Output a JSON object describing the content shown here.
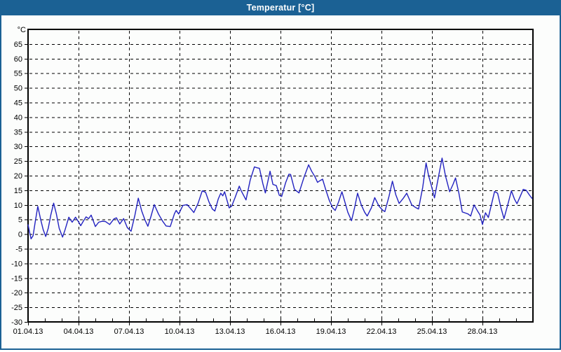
{
  "window": {
    "title": "Temperatur [°C]"
  },
  "colors": {
    "frame_blue": "#1b6194",
    "background": "#fcfdfc",
    "line_blue": "#2222c0",
    "grid_black": "#000000",
    "title_text": "#ffffff"
  },
  "chart_data": {
    "type": "line",
    "title": "Temperatur [°C]",
    "y_unit_label": "°C",
    "ylim": [
      -30,
      70
    ],
    "y_ticks": [
      65,
      60,
      55,
      50,
      45,
      40,
      35,
      30,
      25,
      20,
      15,
      10,
      5,
      0,
      -5,
      -10,
      -15,
      -20,
      -25,
      -30
    ],
    "xlim_days": [
      0,
      30
    ],
    "x_minor_step_days": 1,
    "x_ticks": [
      {
        "d": 0,
        "label": "01.04.13"
      },
      {
        "d": 3,
        "label": "04.04.13"
      },
      {
        "d": 6,
        "label": "07.04.13"
      },
      {
        "d": 9,
        "label": "10.04.13"
      },
      {
        "d": 12,
        "label": "13.04.13"
      },
      {
        "d": 15,
        "label": "16.04.13"
      },
      {
        "d": 18,
        "label": "19.04.13"
      },
      {
        "d": 21,
        "label": "22.04.13"
      },
      {
        "d": 24,
        "label": "25.04.13"
      },
      {
        "d": 27,
        "label": "28.04.13"
      }
    ],
    "grid": "dashed",
    "legend": "none",
    "series": [
      {
        "name": "Temperatur",
        "unit": "°C",
        "points": [
          [
            0,
            3.2
          ],
          [
            0.08,
            1.0
          ],
          [
            0.18,
            -1.6
          ],
          [
            0.3,
            -0.5
          ],
          [
            0.42,
            4.0
          ],
          [
            0.58,
            9.5
          ],
          [
            0.75,
            5.0
          ],
          [
            0.9,
            1.5
          ],
          [
            1.05,
            -0.8
          ],
          [
            1.2,
            2.0
          ],
          [
            1.35,
            6.5
          ],
          [
            1.52,
            10.6
          ],
          [
            1.68,
            7.0
          ],
          [
            1.85,
            2.0
          ],
          [
            2.05,
            -1.0
          ],
          [
            2.2,
            1.5
          ],
          [
            2.42,
            5.8
          ],
          [
            2.62,
            4.1
          ],
          [
            2.82,
            5.8
          ],
          [
            3.0,
            4.2
          ],
          [
            3.13,
            2.9
          ],
          [
            3.3,
            4.6
          ],
          [
            3.45,
            5.9
          ],
          [
            3.6,
            5.3
          ],
          [
            3.75,
            6.5
          ],
          [
            4.0,
            2.6
          ],
          [
            4.2,
            4.1
          ],
          [
            4.4,
            4.4
          ],
          [
            4.6,
            4.3
          ],
          [
            4.85,
            3.3
          ],
          [
            5.1,
            5.2
          ],
          [
            5.25,
            5.6
          ],
          [
            5.45,
            3.5
          ],
          [
            5.68,
            5.3
          ],
          [
            5.9,
            2.2
          ],
          [
            6.12,
            1.0
          ],
          [
            6.35,
            6.5
          ],
          [
            6.55,
            12.3
          ],
          [
            6.75,
            8.0
          ],
          [
            6.95,
            4.8
          ],
          [
            7.12,
            2.7
          ],
          [
            7.3,
            6.0
          ],
          [
            7.5,
            10.1
          ],
          [
            7.75,
            6.9
          ],
          [
            8.0,
            4.4
          ],
          [
            8.2,
            2.8
          ],
          [
            8.45,
            2.6
          ],
          [
            8.7,
            7.0
          ],
          [
            8.8,
            8.1
          ],
          [
            8.95,
            6.9
          ],
          [
            9.2,
            9.8
          ],
          [
            9.45,
            10.1
          ],
          [
            9.65,
            8.8
          ],
          [
            9.85,
            7.4
          ],
          [
            10.1,
            10.5
          ],
          [
            10.35,
            14.8
          ],
          [
            10.55,
            14.3
          ],
          [
            10.75,
            11.0
          ],
          [
            10.95,
            8.6
          ],
          [
            11.1,
            7.9
          ],
          [
            11.3,
            12.0
          ],
          [
            11.45,
            14.0
          ],
          [
            11.57,
            13.1
          ],
          [
            11.68,
            14.5
          ],
          [
            11.8,
            12.0
          ],
          [
            11.95,
            9.0
          ],
          [
            12.1,
            9.6
          ],
          [
            12.3,
            12.5
          ],
          [
            12.55,
            16.4
          ],
          [
            12.65,
            15.0
          ],
          [
            12.95,
            11.7
          ],
          [
            13.2,
            18.5
          ],
          [
            13.45,
            23.0
          ],
          [
            13.6,
            22.7
          ],
          [
            13.75,
            22.5
          ],
          [
            13.95,
            17.3
          ],
          [
            14.1,
            14.1
          ],
          [
            14.38,
            21.5
          ],
          [
            14.55,
            17.0
          ],
          [
            14.75,
            16.6
          ],
          [
            14.93,
            13.3
          ],
          [
            15.07,
            12.9
          ],
          [
            15.3,
            17.5
          ],
          [
            15.5,
            20.5
          ],
          [
            15.6,
            20.4
          ],
          [
            15.83,
            15.3
          ],
          [
            16.1,
            14.1
          ],
          [
            16.4,
            19.5
          ],
          [
            16.67,
            23.7
          ],
          [
            16.85,
            21.5
          ],
          [
            17.05,
            19.6
          ],
          [
            17.2,
            17.7
          ],
          [
            17.35,
            18.3
          ],
          [
            17.5,
            18.8
          ],
          [
            17.7,
            15.0
          ],
          [
            17.9,
            11.5
          ],
          [
            18.1,
            9.0
          ],
          [
            18.25,
            8.1
          ],
          [
            18.45,
            11.0
          ],
          [
            18.65,
            14.5
          ],
          [
            18.85,
            10.5
          ],
          [
            19.0,
            7.5
          ],
          [
            19.22,
            4.6
          ],
          [
            19.4,
            9.0
          ],
          [
            19.58,
            14.0
          ],
          [
            19.8,
            10.0
          ],
          [
            20.0,
            7.5
          ],
          [
            20.15,
            6.2
          ],
          [
            20.4,
            9.0
          ],
          [
            20.6,
            12.5
          ],
          [
            20.85,
            9.6
          ],
          [
            21.05,
            8.3
          ],
          [
            21.2,
            7.7
          ],
          [
            21.45,
            13.0
          ],
          [
            21.65,
            18.1
          ],
          [
            21.85,
            13.5
          ],
          [
            22.05,
            10.5
          ],
          [
            22.3,
            12.3
          ],
          [
            22.5,
            14.0
          ],
          [
            22.65,
            12.0
          ],
          [
            22.8,
            10.0
          ],
          [
            23.0,
            9.2
          ],
          [
            23.2,
            8.6
          ],
          [
            23.45,
            16.0
          ],
          [
            23.65,
            24.3
          ],
          [
            23.8,
            20.0
          ],
          [
            23.95,
            16.9
          ],
          [
            24.15,
            12.4
          ],
          [
            24.4,
            20.0
          ],
          [
            24.6,
            26.0
          ],
          [
            24.8,
            20.0
          ],
          [
            25.05,
            14.5
          ],
          [
            25.25,
            17.0
          ],
          [
            25.4,
            19.2
          ],
          [
            25.6,
            14.0
          ],
          [
            25.8,
            7.6
          ],
          [
            26.0,
            7.2
          ],
          [
            26.15,
            6.9
          ],
          [
            26.3,
            6.2
          ],
          [
            26.5,
            10.0
          ],
          [
            26.7,
            8.0
          ],
          [
            26.85,
            6.6
          ],
          [
            27.0,
            3.3
          ],
          [
            27.18,
            7.3
          ],
          [
            27.35,
            5.7
          ],
          [
            27.55,
            10.5
          ],
          [
            27.72,
            14.6
          ],
          [
            27.9,
            14.0
          ],
          [
            28.1,
            9.0
          ],
          [
            28.28,
            5.3
          ],
          [
            28.5,
            10.0
          ],
          [
            28.72,
            14.8
          ],
          [
            28.9,
            12.0
          ],
          [
            29.05,
            10.4
          ],
          [
            29.25,
            13.0
          ],
          [
            29.42,
            15.3
          ],
          [
            29.6,
            15.0
          ],
          [
            29.8,
            13.3
          ],
          [
            29.95,
            12.2
          ]
        ]
      }
    ]
  }
}
